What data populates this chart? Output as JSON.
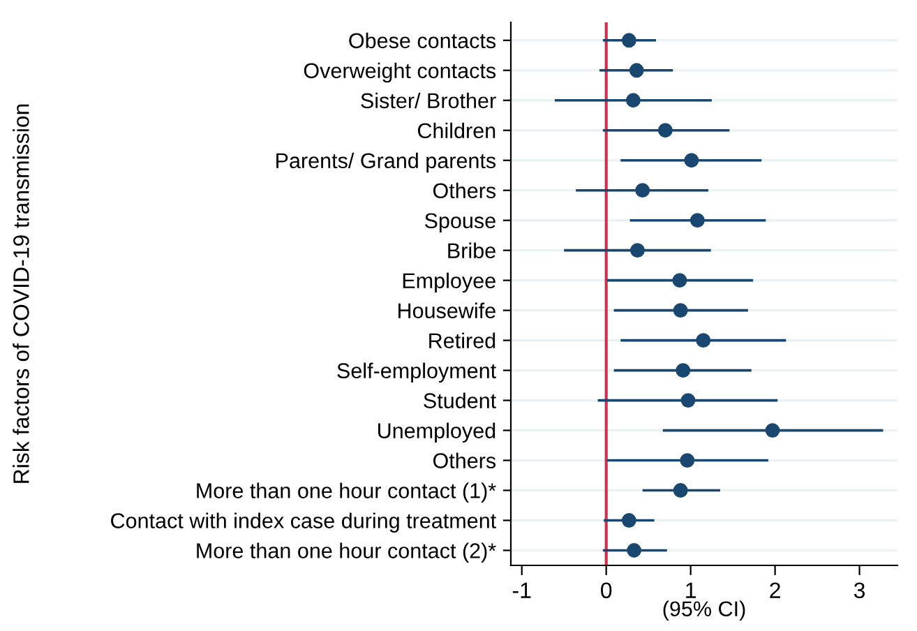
{
  "chart_data": {
    "type": "scatter",
    "orientation": "horizontal",
    "ylabel": "Risk factors of COVID-19 transmission",
    "xlabel": "(95% CI)",
    "categories": [
      "Obese contacts",
      "Overweight contacts",
      "Sister/ Brother",
      "Children",
      "Parents/ Grand parents",
      "Others",
      "Spouse",
      "Bribe",
      "Employee",
      "Housewife",
      "Retired",
      "Self-employment",
      "Student",
      "Unemployed",
      "Others",
      "More than one hour contact (1)*",
      "Contact with index case during treatment",
      "More than one hour contact (2)*"
    ],
    "values": [
      0.27,
      0.36,
      0.32,
      0.7,
      1.01,
      0.43,
      1.08,
      0.37,
      0.87,
      0.88,
      1.15,
      0.91,
      0.97,
      1.97,
      0.96,
      0.88,
      0.27,
      0.33
    ],
    "errors": [
      [
        -0.04,
        0.59
      ],
      [
        -0.08,
        0.79
      ],
      [
        -0.61,
        1.25
      ],
      [
        -0.04,
        1.46
      ],
      [
        0.17,
        1.84
      ],
      [
        -0.36,
        1.21
      ],
      [
        0.28,
        1.89
      ],
      [
        -0.5,
        1.24
      ],
      [
        0.01,
        1.74
      ],
      [
        0.09,
        1.68
      ],
      [
        0.17,
        2.13
      ],
      [
        0.09,
        1.72
      ],
      [
        -0.1,
        2.03
      ],
      [
        0.67,
        3.28
      ],
      [
        0.01,
        1.92
      ],
      [
        0.43,
        1.35
      ],
      [
        -0.03,
        0.57
      ],
      [
        -0.04,
        0.72
      ]
    ],
    "color": "#1a476f",
    "marker": "circle",
    "grid": "y",
    "xlim": [
      -1.13,
      3.45
    ],
    "xticks": [
      {
        "value": -1,
        "label": "-1"
      },
      0,
      1,
      2,
      3
    ],
    "ref_lines": [
      {
        "axis": "x",
        "value": 0,
        "color": "#c8334f"
      }
    ]
  }
}
